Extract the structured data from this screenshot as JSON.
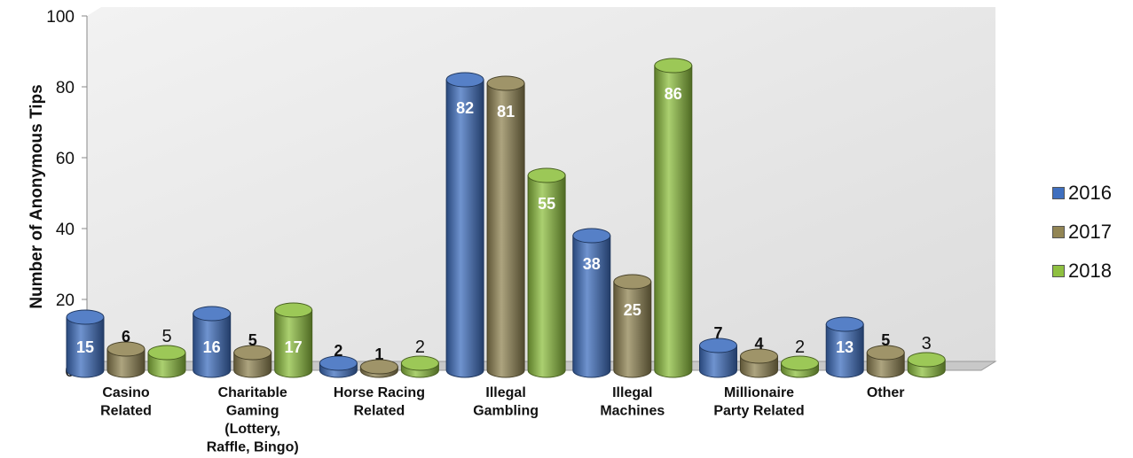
{
  "chart_data": {
    "type": "bar",
    "title": "",
    "xlabel": "",
    "ylabel": "Number of Anonymous Tips",
    "ylim": [
      0,
      100
    ],
    "yticks": [
      0,
      20,
      40,
      60,
      80,
      100
    ],
    "grid": false,
    "legend_position": "right",
    "categories": [
      [
        "Casino",
        "Related"
      ],
      [
        "Charitable",
        "Gaming",
        "(Lottery,",
        "Raffle, Bingo)"
      ],
      [
        "Horse Racing",
        "Related"
      ],
      [
        "Illegal",
        "Gambling"
      ],
      [
        "Illegal",
        "Machines"
      ],
      [
        "Millionaire",
        "Party Related"
      ],
      [
        "Other"
      ]
    ],
    "series": [
      {
        "name": "2016",
        "color": "#3f6fbf",
        "values": [
          15,
          16,
          2,
          82,
          38,
          7,
          13
        ]
      },
      {
        "name": "2017",
        "color": "#928554",
        "values": [
          6,
          5,
          1,
          81,
          25,
          4,
          5
        ]
      },
      {
        "name": "2018",
        "color": "#8fc040",
        "values": [
          5,
          17,
          2,
          55,
          86,
          2,
          3
        ]
      }
    ]
  }
}
